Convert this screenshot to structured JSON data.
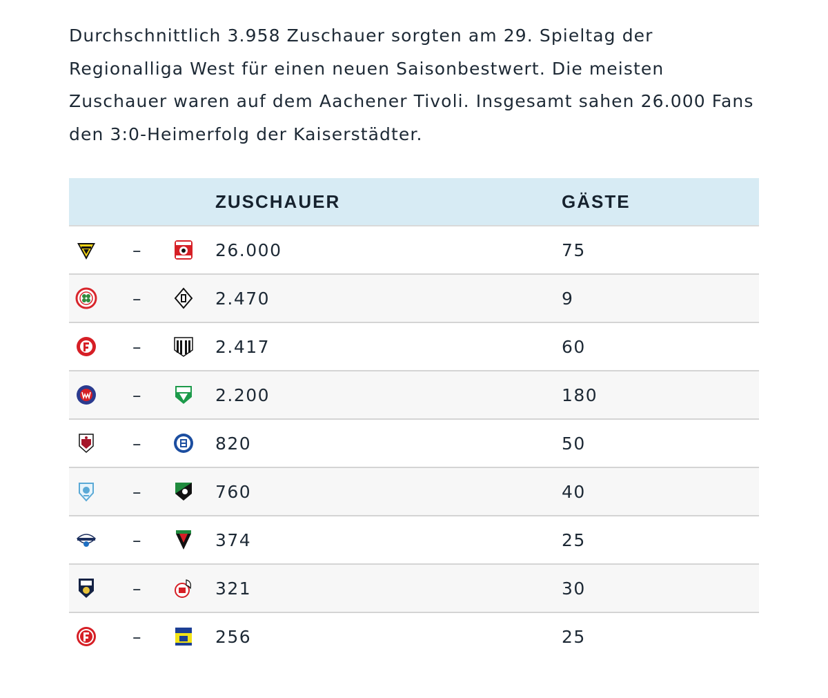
{
  "article": {
    "intro": "Durchschnittlich 3.958 Zuschauer sorgten am 29. Spieltag der Regionalliga West für einen neuen Saisonbestwert. Die meisten Zuschauer waren auf dem Aachener Tivoli. Insgesamt sahen 26.000 Fans den 3:0-Heimerfolg der Kaiserstädter."
  },
  "table": {
    "headers": {
      "spectators": "ZUSCHAUER",
      "guests": "GÄSTE"
    },
    "separator": "–",
    "rows": [
      {
        "home_icon": "alemannia-aachen-crest-icon",
        "away_icon": "kfc-uerdingen-crest-icon",
        "spectators": "26.000",
        "guests": "75"
      },
      {
        "home_icon": "rot-weiss-oberhausen-crest-icon",
        "away_icon": "gladbach-crest-icon",
        "spectators": "2.470",
        "guests": "9"
      },
      {
        "home_icon": "fortuna-koeln-crest-icon",
        "away_icon": "sv-roedinghausen-crest-icon",
        "spectators": "2.417",
        "guests": "60"
      },
      {
        "home_icon": "wuppertaler-sv-crest-icon",
        "away_icon": "fc-guetersloh-crest-icon",
        "spectators": "2.200",
        "guests": "180"
      },
      {
        "home_icon": "sf-lotte-crest-icon",
        "away_icon": "schalke-04-crest-icon",
        "spectators": "820",
        "guests": "50"
      },
      {
        "home_icon": "wegberg-beeck-crest-icon",
        "away_icon": "schermbeck-crest-icon",
        "spectators": "760",
        "guests": "40"
      },
      {
        "home_icon": "paderborn-crest-icon",
        "away_icon": "tsv-meerbusch-crest-icon",
        "spectators": "374",
        "guests": "25"
      },
      {
        "home_icon": "sc-wiedenbrueck-crest-icon",
        "away_icon": "fc-koeln-crest-icon",
        "spectators": "321",
        "guests": "30"
      },
      {
        "home_icon": "fortuna-duesseldorf-crest-icon",
        "away_icon": "vfb-homberg-crest-icon",
        "spectators": "256",
        "guests": "25"
      }
    ]
  },
  "colors": {
    "header_bg": "#d7ebf4",
    "text": "#1d2935",
    "stripe_bg": "#f7f7f7",
    "row_border": "#d4d4d4"
  }
}
